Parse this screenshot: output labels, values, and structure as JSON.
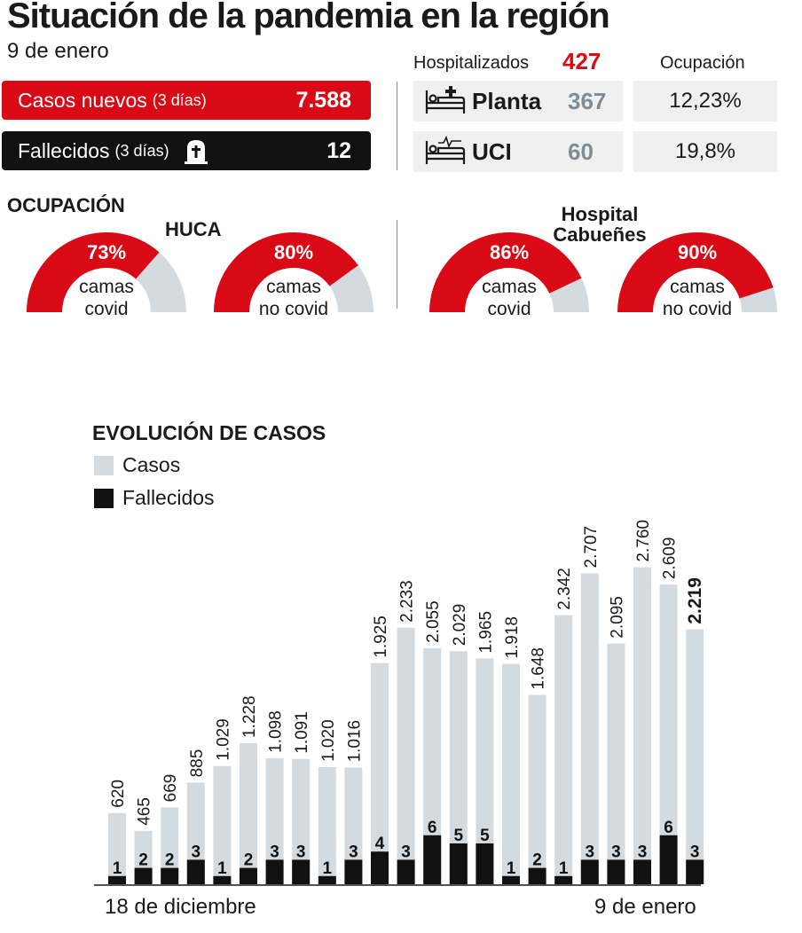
{
  "header": {
    "title": "Situación de la pandemia en la región",
    "date": "9 de enero"
  },
  "kpis": {
    "cases_label": "Casos nuevos",
    "cases_sub": "(3 días)",
    "cases_value": "7.588",
    "deaths_label": "Fallecidos",
    "deaths_sub": "(3 días)",
    "deaths_icon": "tombstone-icon",
    "deaths_value": "12"
  },
  "hospital": {
    "hospitalized_label": "Hospitalizados",
    "hospitalized_value": "427",
    "occupancy_label": "Ocupación",
    "rows": [
      {
        "icon": "hospital-bed-icon",
        "name": "Planta",
        "count": "367",
        "occupancy": "12,23%"
      },
      {
        "icon": "icu-bed-icon",
        "name": "UCI",
        "count": "60",
        "occupancy": "19,8%"
      }
    ]
  },
  "occupancy": {
    "title": "OCUPACIÓN",
    "hospitals": [
      {
        "name": "HUCA",
        "gauges": [
          {
            "percent": 73,
            "label": "73%",
            "line1": "camas",
            "line2": "covid"
          },
          {
            "percent": 80,
            "label": "80%",
            "line1": "camas",
            "line2": "no covid"
          }
        ]
      },
      {
        "name_line1": "Hospital",
        "name_line2": "Cabueñes",
        "gauges": [
          {
            "percent": 86,
            "label": "86%",
            "line1": "camas",
            "line2": "covid"
          },
          {
            "percent": 90,
            "label": "90%",
            "line1": "camas",
            "line2": "no covid"
          }
        ]
      }
    ]
  },
  "colors": {
    "red": "#d90a16",
    "gauge_gray": "#d3dbe0",
    "bar_cases": "#d3dbe0",
    "bar_deaths": "#111111"
  },
  "chart_data": {
    "type": "bar",
    "title": "EVOLUCIÓN DE CASOS",
    "legend": [
      "Casos",
      "Fallecidos"
    ],
    "x_start_label": "18 de diciembre",
    "x_end_label": "9 de enero",
    "series": [
      {
        "name": "Casos",
        "values": [
          620,
          465,
          669,
          885,
          1029,
          1228,
          1098,
          1091,
          1020,
          1016,
          1925,
          2233,
          2055,
          2029,
          1965,
          1918,
          1648,
          2342,
          2707,
          2095,
          2760,
          2609,
          2219
        ],
        "labels": [
          "620",
          "465",
          "669",
          "885",
          "1.029",
          "1.228",
          "1.098",
          "1.091",
          "1.020",
          "1.016",
          "1.925",
          "2.233",
          "2.055",
          "2.029",
          "1.965",
          "1.918",
          "1.648",
          "2.342",
          "2.707",
          "2.095",
          "2.760",
          "2.609",
          "2.219"
        ]
      },
      {
        "name": "Fallecidos",
        "values": [
          1,
          2,
          2,
          3,
          1,
          2,
          3,
          3,
          1,
          3,
          4,
          3,
          6,
          5,
          5,
          1,
          2,
          1,
          3,
          3,
          3,
          6,
          3
        ],
        "labels": [
          "1",
          "2",
          "2",
          "3",
          "1",
          "2",
          "3",
          "3",
          "1",
          "3",
          "4",
          "3",
          "6",
          "5",
          "5",
          "1",
          "2",
          "1",
          "3",
          "3",
          "3",
          "6",
          "3"
        ]
      }
    ],
    "highlight_last": true
  }
}
